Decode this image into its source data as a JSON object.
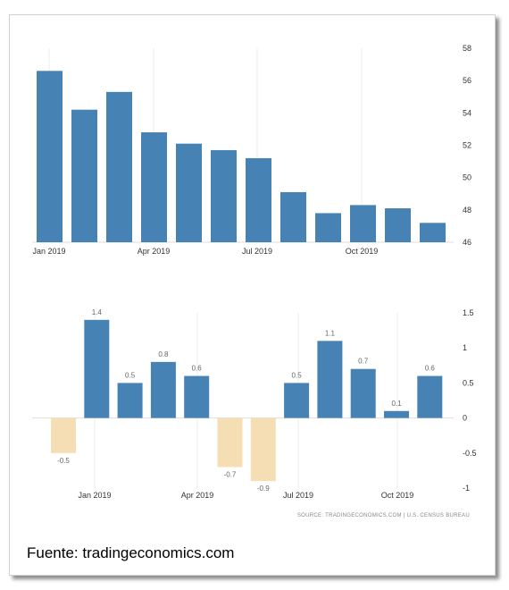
{
  "chart_data": [
    {
      "type": "bar",
      "categories": [
        "Jan 2019",
        "Feb 2019",
        "Mar 2019",
        "Apr 2019",
        "May 2019",
        "Jun 2019",
        "Jul 2019",
        "Aug 2019",
        "Sep 2019",
        "Oct 2019",
        "Nov 2019",
        "Dec 2019"
      ],
      "x_tick_labels": [
        "Jan 2019",
        "Apr 2019",
        "Jul 2019",
        "Oct 2019"
      ],
      "values": [
        56.6,
        54.2,
        55.3,
        52.8,
        52.1,
        51.7,
        51.2,
        49.1,
        47.8,
        48.3,
        48.1,
        47.2
      ],
      "ylim": [
        46,
        58
      ],
      "yticks": [
        46,
        48,
        50,
        52,
        54,
        56,
        58
      ],
      "y_axis_side": "right",
      "grid": "vertical",
      "bar_color": "#4682b4"
    },
    {
      "type": "bar",
      "categories": [
        "Dec 2018",
        "Jan 2019",
        "Feb 2019",
        "Mar 2019",
        "Apr 2019",
        "May 2019",
        "Jun 2019",
        "Jul 2019",
        "Aug 2019",
        "Sep 2019",
        "Oct 2019",
        "Nov 2019"
      ],
      "x_tick_labels": [
        "Jan 2019",
        "Apr 2019",
        "Jul 2019",
        "Oct 2019"
      ],
      "values": [
        -0.5,
        1.4,
        0.5,
        0.8,
        0.6,
        -0.7,
        -0.9,
        0.5,
        1.1,
        0.7,
        0.1,
        0.6
      ],
      "data_labels": [
        "-0.5",
        "1.4",
        "0.5",
        "0.8",
        "0.6",
        "-0.7",
        "-0.9",
        "0.5",
        "1.1",
        "0.7",
        "0.1",
        "0.6"
      ],
      "ylim": [
        -1,
        1.5
      ],
      "yticks": [
        -1,
        -0.5,
        0,
        0.5,
        1,
        1.5
      ],
      "ytick_labels": [
        "-1",
        "-0.5",
        "0",
        "0.5",
        "1",
        "1.5"
      ],
      "y_axis_side": "right",
      "grid": "vertical",
      "positive_color": "#4682b4",
      "negative_color": "#f5deb3"
    }
  ],
  "source_note": "SOURCE: TRADINGECONOMICS.COM | U.S. CENSUS BUREAU",
  "caption": "Fuente: tradingeconomics.com"
}
